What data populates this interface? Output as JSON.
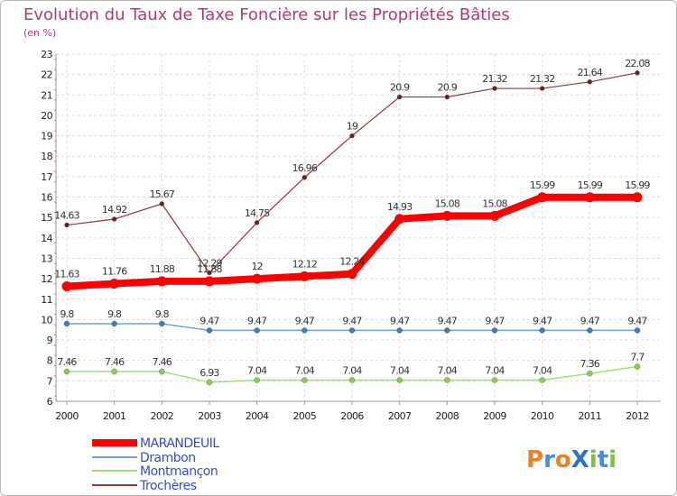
{
  "chart_data": {
    "type": "line",
    "title": "Evolution du Taux de Taxe Foncière sur les Propriétés Bâties",
    "subtitle": "(en %)",
    "xlabel": "",
    "ylabel": "",
    "categories": [
      "2000",
      "2001",
      "2002",
      "2003",
      "2004",
      "2005",
      "2006",
      "2007",
      "2008",
      "2009",
      "2010",
      "2011",
      "2012"
    ],
    "ylim": [
      6,
      23
    ],
    "yticks": [
      6,
      7,
      8,
      9,
      10,
      11,
      12,
      13,
      14,
      15,
      16,
      17,
      18,
      19,
      20,
      21,
      22,
      23
    ],
    "grid": true,
    "legend_position": "bottom-left",
    "series": [
      {
        "name": "MARANDEUIL",
        "color": "#ff0000",
        "marker_color": "#ff0000",
        "values": [
          11.63,
          11.76,
          11.88,
          11.88,
          12,
          12.12,
          12.24,
          14.93,
          15.08,
          15.08,
          15.99,
          15.99,
          15.99
        ],
        "labels": [
          "11.63",
          "11.76",
          "11.88",
          "11.88",
          "12",
          "12.12",
          "12.24",
          "14.93",
          "15.08",
          "15.08",
          "15.99",
          "15.99",
          "15.99"
        ]
      },
      {
        "name": "Drambon",
        "color": "#6fa3d0",
        "marker_color": "#3f7cbf",
        "values": [
          9.8,
          9.8,
          9.8,
          9.47,
          9.47,
          9.47,
          9.47,
          9.47,
          9.47,
          9.47,
          9.47,
          9.47,
          9.47
        ],
        "labels": [
          "9.8",
          "9.8",
          "9.8",
          "9.47",
          "9.47",
          "9.47",
          "9.47",
          "9.47",
          "9.47",
          "9.47",
          "9.47",
          "9.47",
          "9.47"
        ]
      },
      {
        "name": "Montmançon",
        "color": "#a6dc7a",
        "marker_color": "#86d04a",
        "values": [
          7.46,
          7.46,
          7.46,
          6.93,
          7.04,
          7.04,
          7.04,
          7.04,
          7.04,
          7.04,
          7.04,
          7.36,
          7.7
        ],
        "labels": [
          "7.46",
          "7.46",
          "7.46",
          "6.93",
          "7.04",
          "7.04",
          "7.04",
          "7.04",
          "7.04",
          "7.04",
          "7.04",
          "7.36",
          "7.7"
        ]
      },
      {
        "name": "Trochères",
        "color": "#8a3a3a",
        "marker_color": "#6b1f1f",
        "values": [
          14.63,
          14.92,
          15.67,
          12.29,
          14.75,
          16.96,
          19,
          20.9,
          20.9,
          21.32,
          21.32,
          21.64,
          22.08
        ],
        "labels": [
          "14.63",
          "14.92",
          "15.67",
          "12.29",
          "14.75",
          "16.96",
          "19",
          "20.9",
          "20.9",
          "21.32",
          "21.32",
          "21.64",
          "22.08"
        ]
      }
    ]
  },
  "watermark": {
    "text": "Proxiti"
  }
}
